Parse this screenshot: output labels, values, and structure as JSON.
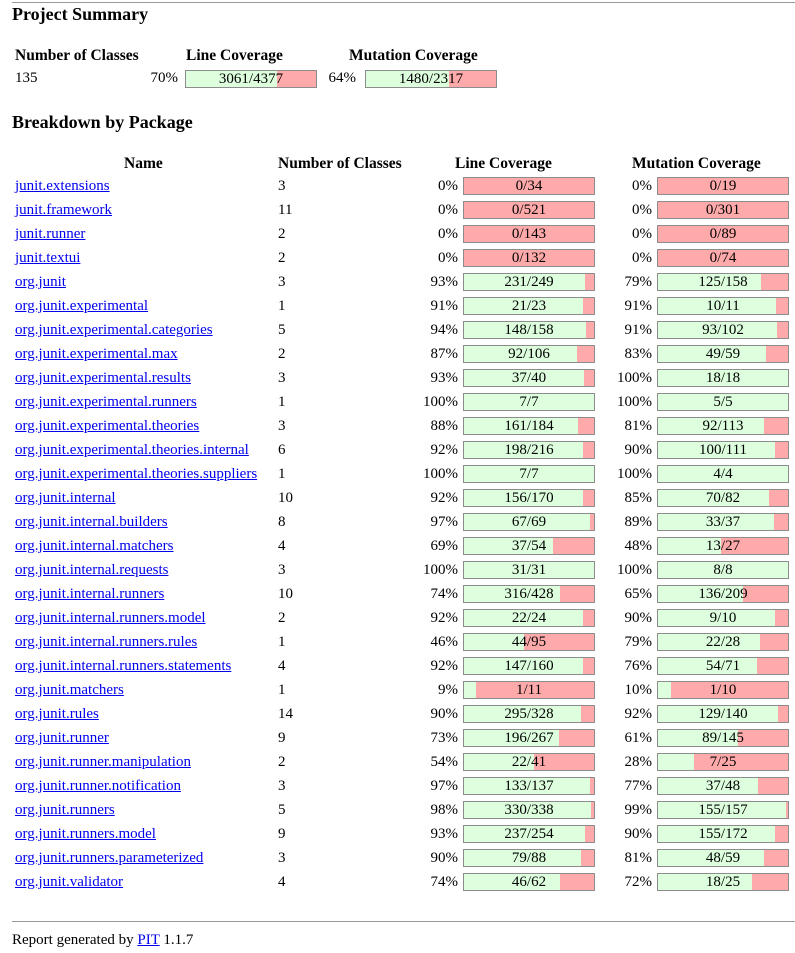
{
  "title": "Project Summary",
  "summary": {
    "headers": {
      "classes": "Number of Classes",
      "line": "Line Coverage",
      "mutation": "Mutation Coverage"
    },
    "classes": "135",
    "line_pct": "70%",
    "line_text": "3061/4377",
    "line_fraction": 0.7,
    "mut_pct": "64%",
    "mut_text": "1480/2317",
    "mut_fraction": 0.64
  },
  "breakdown_title": "Breakdown by Package",
  "table_headers": {
    "name": "Name",
    "classes": "Number of Classes",
    "line": "Line Coverage",
    "mutation": "Mutation Coverage"
  },
  "packages": [
    {
      "name": "junit.extensions",
      "classes": "3",
      "line_pct": "0%",
      "line_text": "0/34",
      "mut_pct": "0%",
      "mut_text": "0/19"
    },
    {
      "name": "junit.framework",
      "classes": "11",
      "line_pct": "0%",
      "line_text": "0/521",
      "mut_pct": "0%",
      "mut_text": "0/301"
    },
    {
      "name": "junit.runner",
      "classes": "2",
      "line_pct": "0%",
      "line_text": "0/143",
      "mut_pct": "0%",
      "mut_text": "0/89"
    },
    {
      "name": "junit.textui",
      "classes": "2",
      "line_pct": "0%",
      "line_text": "0/132",
      "mut_pct": "0%",
      "mut_text": "0/74"
    },
    {
      "name": "org.junit",
      "classes": "3",
      "line_pct": "93%",
      "line_text": "231/249",
      "mut_pct": "79%",
      "mut_text": "125/158"
    },
    {
      "name": "org.junit.experimental",
      "classes": "1",
      "line_pct": "91%",
      "line_text": "21/23",
      "mut_pct": "91%",
      "mut_text": "10/11"
    },
    {
      "name": "org.junit.experimental.categories",
      "classes": "5",
      "line_pct": "94%",
      "line_text": "148/158",
      "mut_pct": "91%",
      "mut_text": "93/102"
    },
    {
      "name": "org.junit.experimental.max",
      "classes": "2",
      "line_pct": "87%",
      "line_text": "92/106",
      "mut_pct": "83%",
      "mut_text": "49/59"
    },
    {
      "name": "org.junit.experimental.results",
      "classes": "3",
      "line_pct": "93%",
      "line_text": "37/40",
      "mut_pct": "100%",
      "mut_text": "18/18"
    },
    {
      "name": "org.junit.experimental.runners",
      "classes": "1",
      "line_pct": "100%",
      "line_text": "7/7",
      "mut_pct": "100%",
      "mut_text": "5/5"
    },
    {
      "name": "org.junit.experimental.theories",
      "classes": "3",
      "line_pct": "88%",
      "line_text": "161/184",
      "mut_pct": "81%",
      "mut_text": "92/113"
    },
    {
      "name": "org.junit.experimental.theories.internal",
      "classes": "6",
      "line_pct": "92%",
      "line_text": "198/216",
      "mut_pct": "90%",
      "mut_text": "100/111"
    },
    {
      "name": "org.junit.experimental.theories.suppliers",
      "classes": "1",
      "line_pct": "100%",
      "line_text": "7/7",
      "mut_pct": "100%",
      "mut_text": "4/4"
    },
    {
      "name": "org.junit.internal",
      "classes": "10",
      "line_pct": "92%",
      "line_text": "156/170",
      "mut_pct": "85%",
      "mut_text": "70/82"
    },
    {
      "name": "org.junit.internal.builders",
      "classes": "8",
      "line_pct": "97%",
      "line_text": "67/69",
      "mut_pct": "89%",
      "mut_text": "33/37"
    },
    {
      "name": "org.junit.internal.matchers",
      "classes": "4",
      "line_pct": "69%",
      "line_text": "37/54",
      "mut_pct": "48%",
      "mut_text": "13/27"
    },
    {
      "name": "org.junit.internal.requests",
      "classes": "3",
      "line_pct": "100%",
      "line_text": "31/31",
      "mut_pct": "100%",
      "mut_text": "8/8"
    },
    {
      "name": "org.junit.internal.runners",
      "classes": "10",
      "line_pct": "74%",
      "line_text": "316/428",
      "mut_pct": "65%",
      "mut_text": "136/209"
    },
    {
      "name": "org.junit.internal.runners.model",
      "classes": "2",
      "line_pct": "92%",
      "line_text": "22/24",
      "mut_pct": "90%",
      "mut_text": "9/10"
    },
    {
      "name": "org.junit.internal.runners.rules",
      "classes": "1",
      "line_pct": "46%",
      "line_text": "44/95",
      "mut_pct": "79%",
      "mut_text": "22/28"
    },
    {
      "name": "org.junit.internal.runners.statements",
      "classes": "4",
      "line_pct": "92%",
      "line_text": "147/160",
      "mut_pct": "76%",
      "mut_text": "54/71"
    },
    {
      "name": "org.junit.matchers",
      "classes": "1",
      "line_pct": "9%",
      "line_text": "1/11",
      "mut_pct": "10%",
      "mut_text": "1/10"
    },
    {
      "name": "org.junit.rules",
      "classes": "14",
      "line_pct": "90%",
      "line_text": "295/328",
      "mut_pct": "92%",
      "mut_text": "129/140"
    },
    {
      "name": "org.junit.runner",
      "classes": "9",
      "line_pct": "73%",
      "line_text": "196/267",
      "mut_pct": "61%",
      "mut_text": "89/145"
    },
    {
      "name": "org.junit.runner.manipulation",
      "classes": "2",
      "line_pct": "54%",
      "line_text": "22/41",
      "mut_pct": "28%",
      "mut_text": "7/25"
    },
    {
      "name": "org.junit.runner.notification",
      "classes": "3",
      "line_pct": "97%",
      "line_text": "133/137",
      "mut_pct": "77%",
      "mut_text": "37/48"
    },
    {
      "name": "org.junit.runners",
      "classes": "5",
      "line_pct": "98%",
      "line_text": "330/338",
      "mut_pct": "99%",
      "mut_text": "155/157"
    },
    {
      "name": "org.junit.runners.model",
      "classes": "9",
      "line_pct": "93%",
      "line_text": "237/254",
      "mut_pct": "90%",
      "mut_text": "155/172"
    },
    {
      "name": "org.junit.runners.parameterized",
      "classes": "3",
      "line_pct": "90%",
      "line_text": "79/88",
      "mut_pct": "81%",
      "mut_text": "48/59"
    },
    {
      "name": "org.junit.validator",
      "classes": "4",
      "line_pct": "74%",
      "line_text": "46/62",
      "mut_pct": "72%",
      "mut_text": "18/25"
    }
  ],
  "footer": {
    "prefix": "Report generated by ",
    "link": "PIT",
    "version": " 1.1.7"
  },
  "colors": {
    "covered": "#ddffdd",
    "uncovered": "#ffaaaa",
    "link": "#0000ee"
  }
}
